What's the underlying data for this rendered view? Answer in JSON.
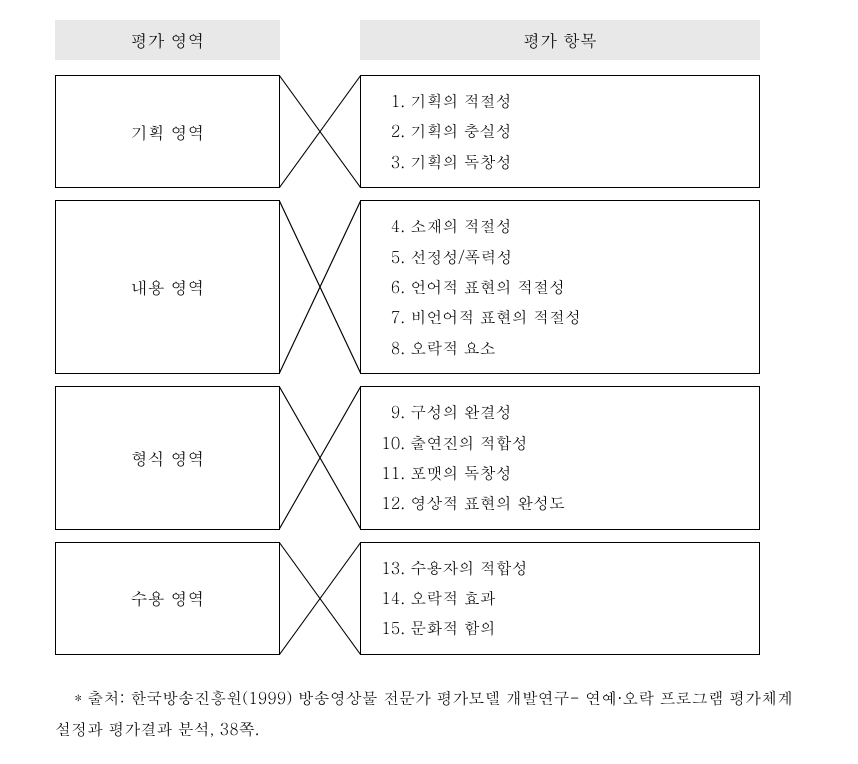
{
  "headers": {
    "area": "평가 영역",
    "items": "평가  항목"
  },
  "sections": [
    {
      "area_label": "기획 영역",
      "items": [
        {
          "num": "1.",
          "text": "기획의 적절성"
        },
        {
          "num": "2.",
          "text": "기획의 충실성"
        },
        {
          "num": "3.",
          "text": "기획의 독창성"
        }
      ]
    },
    {
      "area_label": "내용 영역",
      "items": [
        {
          "num": "4.",
          "text": "소재의 적절성"
        },
        {
          "num": "5.",
          "text": "선정성/폭력성"
        },
        {
          "num": "6.",
          "text": "언어적 표현의 적절성"
        },
        {
          "num": "7.",
          "text": "비언어적 표현의 적절성"
        },
        {
          "num": "8.",
          "text": "오락적 요소"
        }
      ]
    },
    {
      "area_label": "형식 영역",
      "items": [
        {
          "num": "9.",
          "text": "구성의 완결성"
        },
        {
          "num": "10.",
          "text": "출연진의 적합성"
        },
        {
          "num": "11.",
          "text": "포맷의 독창성"
        },
        {
          "num": "12.",
          "text": "영상적 표현의 완성도"
        }
      ]
    },
    {
      "area_label": "수용 영역",
      "items": [
        {
          "num": "13.",
          "text": "수용자의 적합성"
        },
        {
          "num": "14.",
          "text": "오락적 효과"
        },
        {
          "num": "15.",
          "text": "문화적 함의"
        }
      ]
    }
  ],
  "source_note": "* 출처: 한국방송진흥원(1999) 방송영상물 전문가 평가모델 개발연구- 연예·오락 프로그램 평가체계 설정과 평가결과 분석, 38쪽.",
  "style": {
    "background_color": "#ffffff",
    "header_bg": "#e8e8e8",
    "border_color": "#000000",
    "font_family": "Batang, serif",
    "header_fontsize": 17,
    "area_fontsize": 17,
    "item_fontsize": 16,
    "note_fontsize": 16,
    "line_height": 1.9,
    "stroke_color": "#000000",
    "stroke_width": 1
  }
}
